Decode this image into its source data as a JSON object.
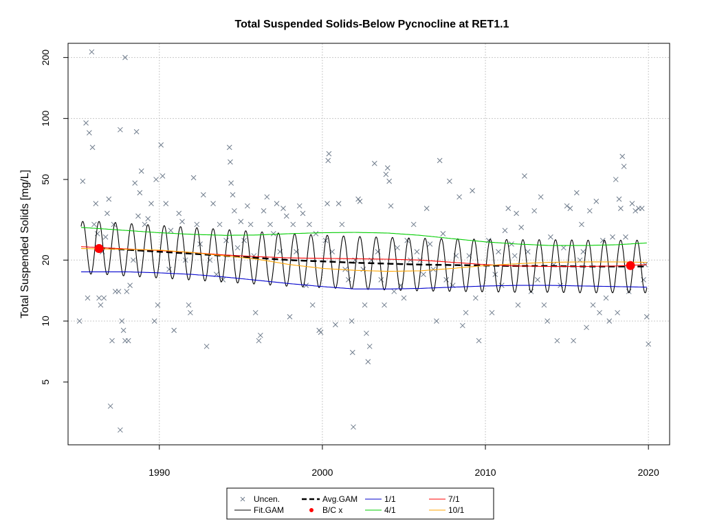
{
  "chart_data": {
    "type": "scatter",
    "title": "Total Suspended Solids-Below Pycnocline at RET1.1",
    "xlabel": "",
    "ylabel": "Total Suspended Solids [mg/L]",
    "y_scale": "log",
    "xlim": [
      1984.4,
      2021.3
    ],
    "ylim": [
      2.45,
      235
    ],
    "grid": true,
    "legend_placement": "bottom-center",
    "x_ticks": [
      1990,
      2000,
      2010,
      2020
    ],
    "x_tick_labels": [
      "1990",
      "2000",
      "2010",
      "2020"
    ],
    "y_ticks": [
      5,
      10,
      20,
      50,
      100,
      200
    ],
    "y_tick_labels": [
      "5",
      "10",
      "20",
      "50",
      "100",
      "200"
    ],
    "legend": [
      {
        "label": "Uncen.",
        "symbol": "x",
        "color": "#6e7b8b"
      },
      {
        "label": "Avg.GAM",
        "symbol": "dash",
        "color": "#000000"
      },
      {
        "label": "1/1",
        "symbol": "line",
        "color": "#0000cd"
      },
      {
        "label": "7/1",
        "symbol": "line",
        "color": "#ff0000"
      },
      {
        "label": "Fit.GAM",
        "symbol": "line",
        "color": "#000000"
      },
      {
        "label": "B/C x",
        "symbol": "dot",
        "color": "#ff0000"
      },
      {
        "label": "4/1",
        "symbol": "line",
        "color": "#00cd00"
      },
      {
        "label": "10/1",
        "symbol": "line",
        "color": "#ffa500"
      }
    ],
    "colors": {
      "uncen": "#6e7b8b",
      "fit": "#000000",
      "avg": "#000000",
      "jan1": "#0000cd",
      "apr1": "#00cd00",
      "jul1": "#ff0000",
      "oct1": "#ffa500",
      "bc": "#ff0000"
    },
    "uncen_points": [
      [
        1985.1,
        10
      ],
      [
        1985.3,
        49
      ],
      [
        1985.5,
        95
      ],
      [
        1985.6,
        13
      ],
      [
        1985.7,
        85
      ],
      [
        1985.9,
        72
      ],
      [
        1985.85,
        213
      ],
      [
        1986.0,
        30
      ],
      [
        1986.2,
        27
      ],
      [
        1986.3,
        13
      ],
      [
        1986.4,
        12
      ],
      [
        1986.6,
        13
      ],
      [
        1986.7,
        26
      ],
      [
        1986.8,
        34
      ],
      [
        1986.9,
        40
      ],
      [
        1987.1,
        8
      ],
      [
        1987.2,
        30
      ],
      [
        1987.3,
        14
      ],
      [
        1987.5,
        14
      ],
      [
        1987.6,
        88
      ],
      [
        1987.7,
        10
      ],
      [
        1987.8,
        9
      ],
      [
        1987.9,
        8
      ],
      [
        1988.0,
        14
      ],
      [
        1988.1,
        8
      ],
      [
        1988.2,
        15
      ],
      [
        1988.4,
        20
      ],
      [
        1988.5,
        48
      ],
      [
        1988.6,
        86
      ],
      [
        1988.7,
        33
      ],
      [
        1988.8,
        43
      ],
      [
        1988.9,
        55
      ],
      [
        1989.1,
        30
      ],
      [
        1989.3,
        32
      ],
      [
        1989.5,
        38
      ],
      [
        1989.7,
        10
      ],
      [
        1989.8,
        50
      ],
      [
        1989.9,
        12
      ],
      [
        1990.1,
        74
      ],
      [
        1990.2,
        52
      ],
      [
        1990.4,
        38
      ],
      [
        1990.6,
        18
      ],
      [
        1990.7,
        28
      ],
      [
        1990.9,
        9
      ],
      [
        1987.0,
        3.8
      ],
      [
        1987.6,
        2.9
      ],
      [
        1987.9,
        200
      ],
      [
        1986.5,
        22
      ],
      [
        1986.1,
        38
      ],
      [
        1991.2,
        34
      ],
      [
        1991.4,
        31
      ],
      [
        1991.6,
        20
      ],
      [
        1991.8,
        12
      ],
      [
        1991.9,
        11
      ],
      [
        1992.1,
        51
      ],
      [
        1992.3,
        30
      ],
      [
        1992.5,
        24
      ],
      [
        1992.7,
        42
      ],
      [
        1992.9,
        7.5
      ],
      [
        1993.1,
        20
      ],
      [
        1993.3,
        38
      ],
      [
        1993.5,
        17
      ],
      [
        1993.7,
        30
      ],
      [
        1993.9,
        16
      ],
      [
        1994.1,
        25
      ],
      [
        1994.3,
        72
      ],
      [
        1994.35,
        61
      ],
      [
        1994.4,
        48
      ],
      [
        1994.5,
        42
      ],
      [
        1994.6,
        35
      ],
      [
        1994.8,
        23
      ],
      [
        1995.0,
        31
      ],
      [
        1995.2,
        25
      ],
      [
        1995.4,
        37
      ],
      [
        1995.6,
        30
      ],
      [
        1995.8,
        21
      ],
      [
        1995.9,
        11
      ],
      [
        1996.1,
        8
      ],
      [
        1996.2,
        8.5
      ],
      [
        1996.4,
        35
      ],
      [
        1996.6,
        41
      ],
      [
        1996.8,
        30
      ],
      [
        1997.0,
        27
      ],
      [
        1997.2,
        38
      ],
      [
        1997.4,
        22
      ],
      [
        1997.6,
        36
      ],
      [
        1997.8,
        33
      ],
      [
        1998.0,
        10.5
      ],
      [
        1998.2,
        30
      ],
      [
        1998.4,
        22
      ],
      [
        1998.6,
        37
      ],
      [
        1998.8,
        34
      ],
      [
        1999.0,
        15
      ],
      [
        1999.2,
        30
      ],
      [
        1999.4,
        12
      ],
      [
        1999.6,
        27
      ],
      [
        1999.8,
        9
      ],
      [
        1999.9,
        8.8
      ],
      [
        2000.2,
        25
      ],
      [
        2000.3,
        38
      ],
      [
        2000.35,
        62
      ],
      [
        2000.4,
        67
      ],
      [
        2000.6,
        22
      ],
      [
        2000.8,
        9.6
      ],
      [
        2001.0,
        38
      ],
      [
        2001.2,
        30
      ],
      [
        2001.4,
        18
      ],
      [
        2001.6,
        16
      ],
      [
        2001.8,
        10
      ],
      [
        2001.85,
        7
      ],
      [
        2001.9,
        3
      ],
      [
        2002.0,
        20
      ],
      [
        2002.2,
        40
      ],
      [
        2002.3,
        39
      ],
      [
        2002.5,
        18
      ],
      [
        2002.6,
        12
      ],
      [
        2002.7,
        8.7
      ],
      [
        2002.8,
        6.3
      ],
      [
        2002.9,
        7.5
      ],
      [
        2003.0,
        20
      ],
      [
        2003.2,
        60
      ],
      [
        2003.4,
        22
      ],
      [
        2003.6,
        16
      ],
      [
        2003.8,
        12
      ],
      [
        2003.9,
        53
      ],
      [
        2004.0,
        57
      ],
      [
        2004.1,
        49
      ],
      [
        2004.2,
        37
      ],
      [
        2004.4,
        14
      ],
      [
        2004.6,
        23
      ],
      [
        2004.8,
        15
      ],
      [
        2005.0,
        13
      ],
      [
        2005.2,
        25
      ],
      [
        2005.4,
        20
      ],
      [
        2005.6,
        30
      ],
      [
        2005.8,
        22
      ],
      [
        2006.0,
        20
      ],
      [
        2006.2,
        17
      ],
      [
        2006.4,
        36
      ],
      [
        2006.6,
        24
      ],
      [
        2006.8,
        18
      ],
      [
        2007.0,
        10
      ],
      [
        2007.2,
        62
      ],
      [
        2007.4,
        27
      ],
      [
        2007.6,
        16
      ],
      [
        2007.8,
        49
      ],
      [
        2008.0,
        15
      ],
      [
        2008.2,
        21
      ],
      [
        2008.4,
        41
      ],
      [
        2008.6,
        9.5
      ],
      [
        2008.8,
        11
      ],
      [
        2009.0,
        21
      ],
      [
        2009.2,
        44
      ],
      [
        2009.4,
        13
      ],
      [
        2009.6,
        8
      ],
      [
        2010.2,
        25
      ],
      [
        2010.4,
        11
      ],
      [
        2010.6,
        17
      ],
      [
        2010.8,
        22
      ],
      [
        2011.0,
        15
      ],
      [
        2011.2,
        28
      ],
      [
        2011.4,
        36
      ],
      [
        2011.6,
        24
      ],
      [
        2011.8,
        21
      ],
      [
        2011.9,
        34
      ],
      [
        2012.0,
        12
      ],
      [
        2012.2,
        29
      ],
      [
        2012.4,
        52
      ],
      [
        2012.6,
        22
      ],
      [
        2012.8,
        14
      ],
      [
        2013.0,
        35
      ],
      [
        2013.2,
        16
      ],
      [
        2013.4,
        41
      ],
      [
        2013.6,
        12
      ],
      [
        2013.8,
        10
      ],
      [
        2014.0,
        26
      ],
      [
        2014.2,
        19
      ],
      [
        2014.4,
        8
      ],
      [
        2014.6,
        15
      ],
      [
        2014.8,
        23
      ],
      [
        2015.0,
        37
      ],
      [
        2015.2,
        36
      ],
      [
        2015.4,
        8
      ],
      [
        2015.6,
        43
      ],
      [
        2015.8,
        20
      ],
      [
        2015.9,
        30
      ],
      [
        2016.0,
        22
      ],
      [
        2016.2,
        9.3
      ],
      [
        2016.4,
        35
      ],
      [
        2016.6,
        12
      ],
      [
        2016.8,
        39
      ],
      [
        2017.0,
        11
      ],
      [
        2017.2,
        25
      ],
      [
        2017.4,
        13
      ],
      [
        2017.6,
        10
      ],
      [
        2017.8,
        26
      ],
      [
        2018.0,
        50
      ],
      [
        2018.2,
        40
      ],
      [
        2018.3,
        36
      ],
      [
        2018.4,
        65
      ],
      [
        2018.5,
        58
      ],
      [
        2018.6,
        26
      ],
      [
        2018.8,
        14
      ],
      [
        2019.0,
        38
      ],
      [
        2019.2,
        35
      ],
      [
        2019.4,
        36
      ],
      [
        2019.6,
        36
      ],
      [
        2019.8,
        19
      ],
      [
        2019.9,
        10.5
      ],
      [
        2020.0,
        7.7
      ],
      [
        2019.7,
        16
      ],
      [
        2018.1,
        11
      ]
    ],
    "fit_gam": {
      "start": 1985.2,
      "end": 2019.9,
      "period": 1.0,
      "amp_log10": 0.13
    },
    "series": [
      {
        "name": "Avg.GAM",
        "x": [
          1986.3,
          1988,
          1990,
          1992,
          1994,
          1996,
          1998,
          2000,
          2002,
          2004,
          2006,
          2008,
          2010,
          2012,
          2014,
          2016,
          2018,
          2019.9
        ],
        "values": [
          23,
          22.5,
          22,
          21.5,
          21,
          20.5,
          20,
          19.7,
          19.4,
          19.2,
          19,
          18.9,
          18.8,
          18.7,
          18.7,
          18.6,
          18.6,
          18.6
        ]
      },
      {
        "name": "1/1",
        "x": [
          1985.2,
          1988,
          1990,
          1992,
          1994,
          1996,
          1998,
          2000,
          2002,
          2004,
          2006,
          2008,
          2010,
          2012,
          2014,
          2016,
          2018,
          2019.9
        ],
        "values": [
          17.5,
          17.5,
          17.3,
          17,
          16.5,
          15.9,
          15.3,
          14.8,
          14.4,
          14.4,
          14.5,
          14.7,
          14.9,
          15,
          15,
          14.9,
          14.8,
          14.7
        ]
      },
      {
        "name": "4/1",
        "x": [
          1985.2,
          1988,
          1990,
          1992,
          1994,
          1996,
          1998,
          2000,
          2002,
          2004,
          2006,
          2008,
          2010,
          2012,
          2014,
          2016,
          2018,
          2019.9
        ],
        "values": [
          29,
          28,
          27.3,
          26.8,
          26.5,
          26.6,
          27,
          27.3,
          27.4,
          27.2,
          26.5,
          25.5,
          24.6,
          24,
          23.6,
          23.6,
          23.8,
          24.3
        ]
      },
      {
        "name": "7/1",
        "x": [
          1985.2,
          1988,
          1990,
          1992,
          1994,
          1996,
          1998,
          2000,
          2002,
          2004,
          2006,
          2008,
          2010,
          2012,
          2014,
          2016,
          2018,
          2019.9
        ],
        "values": [
          23.3,
          22.7,
          22.3,
          21.8,
          21.2,
          20.8,
          20.5,
          20.4,
          20.3,
          20.2,
          20,
          19.5,
          19,
          18.7,
          18.6,
          18.6,
          18.7,
          19
        ]
      },
      {
        "name": "10/1",
        "x": [
          1985.2,
          1988,
          1990,
          1992,
          1994,
          1996,
          1998,
          2000,
          2002,
          2004,
          2006,
          2008,
          2010,
          2012,
          2014,
          2016,
          2018,
          2019.9
        ],
        "values": [
          22.8,
          22.6,
          22.4,
          21.8,
          21,
          20.2,
          19,
          18.2,
          17.8,
          17.6,
          17.7,
          18.2,
          18.8,
          19.2,
          19.5,
          19.6,
          19.6,
          19.5
        ]
      }
    ],
    "bc_points": [
      [
        1986.3,
        22.8
      ],
      [
        2018.9,
        18.8
      ]
    ]
  }
}
